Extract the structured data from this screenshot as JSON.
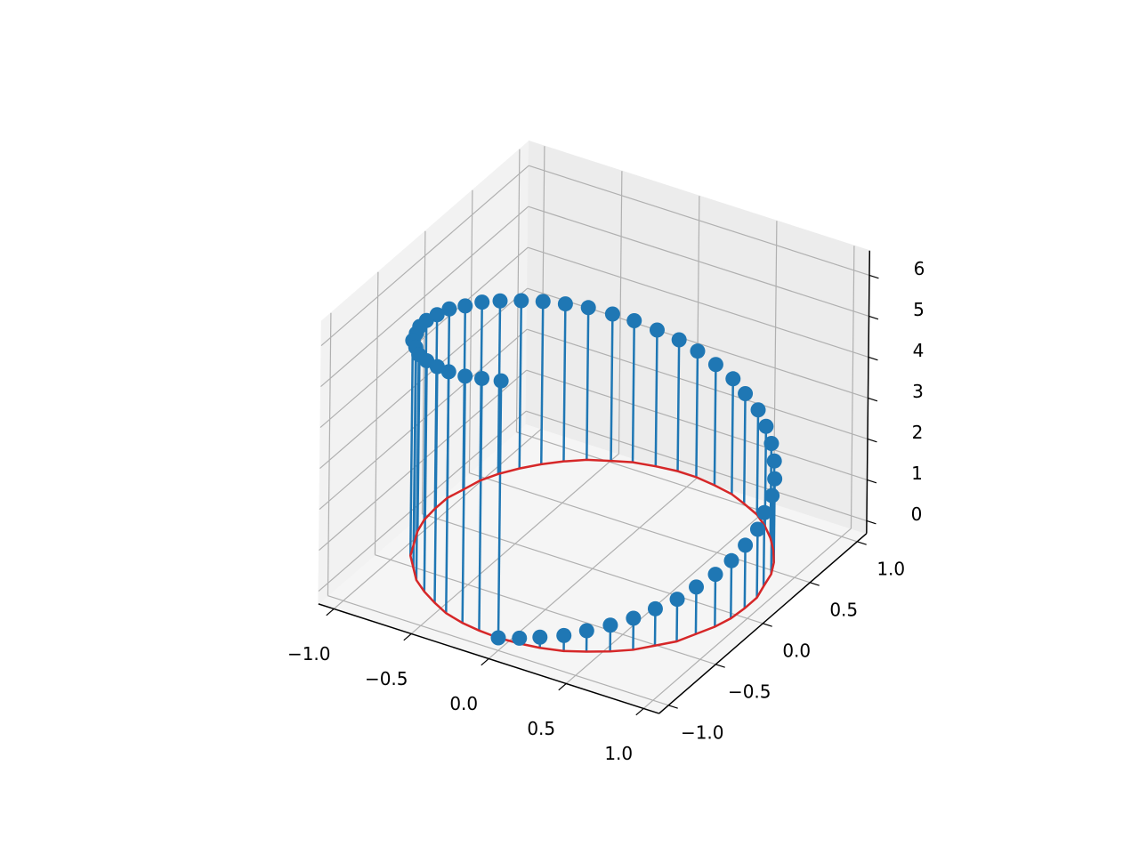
{
  "chart_data": {
    "type": "stem3d",
    "x": [
      0,
      0.13,
      0.25,
      0.38,
      0.49,
      0.6,
      0.7,
      0.78,
      0.86,
      0.91,
      0.96,
      0.99,
      1.0,
      1.0,
      0.97,
      0.94,
      0.89,
      0.82,
      0.74,
      0.65,
      0.55,
      0.43,
      0.32,
      0.19,
      0.06,
      -0.06,
      -0.19,
      -0.32,
      -0.43,
      -0.55,
      -0.65,
      -0.74,
      -0.82,
      -0.89,
      -0.94,
      -0.97,
      -1.0,
      -1.0,
      -0.99,
      -0.96,
      -0.91,
      -0.86,
      -0.78,
      -0.7,
      -0.6,
      -0.49,
      -0.38,
      -0.25,
      -0.13,
      0
    ],
    "y": [
      -1,
      -0.99,
      -0.97,
      -0.93,
      -0.87,
      -0.8,
      -0.72,
      -0.62,
      -0.52,
      -0.4,
      -0.28,
      -0.16,
      -0.03,
      0.1,
      0.22,
      0.35,
      0.46,
      0.57,
      0.67,
      0.76,
      0.84,
      0.9,
      0.95,
      0.98,
      1.0,
      1.0,
      0.98,
      0.95,
      0.9,
      0.84,
      0.76,
      0.67,
      0.57,
      0.46,
      0.35,
      0.22,
      0.1,
      -0.03,
      -0.16,
      -0.28,
      -0.4,
      -0.52,
      -0.62,
      -0.72,
      -0.8,
      -0.87,
      -0.93,
      -0.97,
      -0.99,
      -1
    ],
    "z": [
      0,
      0.13,
      0.26,
      0.38,
      0.51,
      0.64,
      0.77,
      0.9,
      1.03,
      1.15,
      1.28,
      1.41,
      1.54,
      1.67,
      1.8,
      1.92,
      2.05,
      2.18,
      2.31,
      2.44,
      2.56,
      2.69,
      2.82,
      2.95,
      3.08,
      3.21,
      3.33,
      3.46,
      3.59,
      3.72,
      3.85,
      3.98,
      4.1,
      4.23,
      4.36,
      4.49,
      4.62,
      4.74,
      4.87,
      5.0,
      5.13,
      5.26,
      5.39,
      5.51,
      5.64,
      5.77,
      5.9,
      6.03,
      6.16,
      6.28
    ],
    "color": "#1f77b4",
    "baseline_color": "#d62728",
    "xlim": [
      -1.1,
      1.1
    ],
    "ylim": [
      -1.1,
      1.1
    ],
    "zlim": [
      -0.31,
      6.6
    ],
    "xticks": [
      {
        "value": -1,
        "label": "−1.0"
      },
      {
        "value": -0.5,
        "label": "−0.5"
      },
      {
        "value": 0,
        "label": "0.0"
      },
      {
        "value": 0.5,
        "label": "0.5"
      },
      {
        "value": 1,
        "label": "1.0"
      }
    ],
    "yticks": [
      {
        "value": -1,
        "label": "−1.0"
      },
      {
        "value": -0.5,
        "label": "−0.5"
      },
      {
        "value": 0,
        "label": "0.0"
      },
      {
        "value": 0.5,
        "label": "0.5"
      },
      {
        "value": 1,
        "label": "1.0"
      }
    ],
    "zticks": [
      0,
      1,
      2,
      3,
      4,
      5,
      6
    ],
    "grid": true
  }
}
